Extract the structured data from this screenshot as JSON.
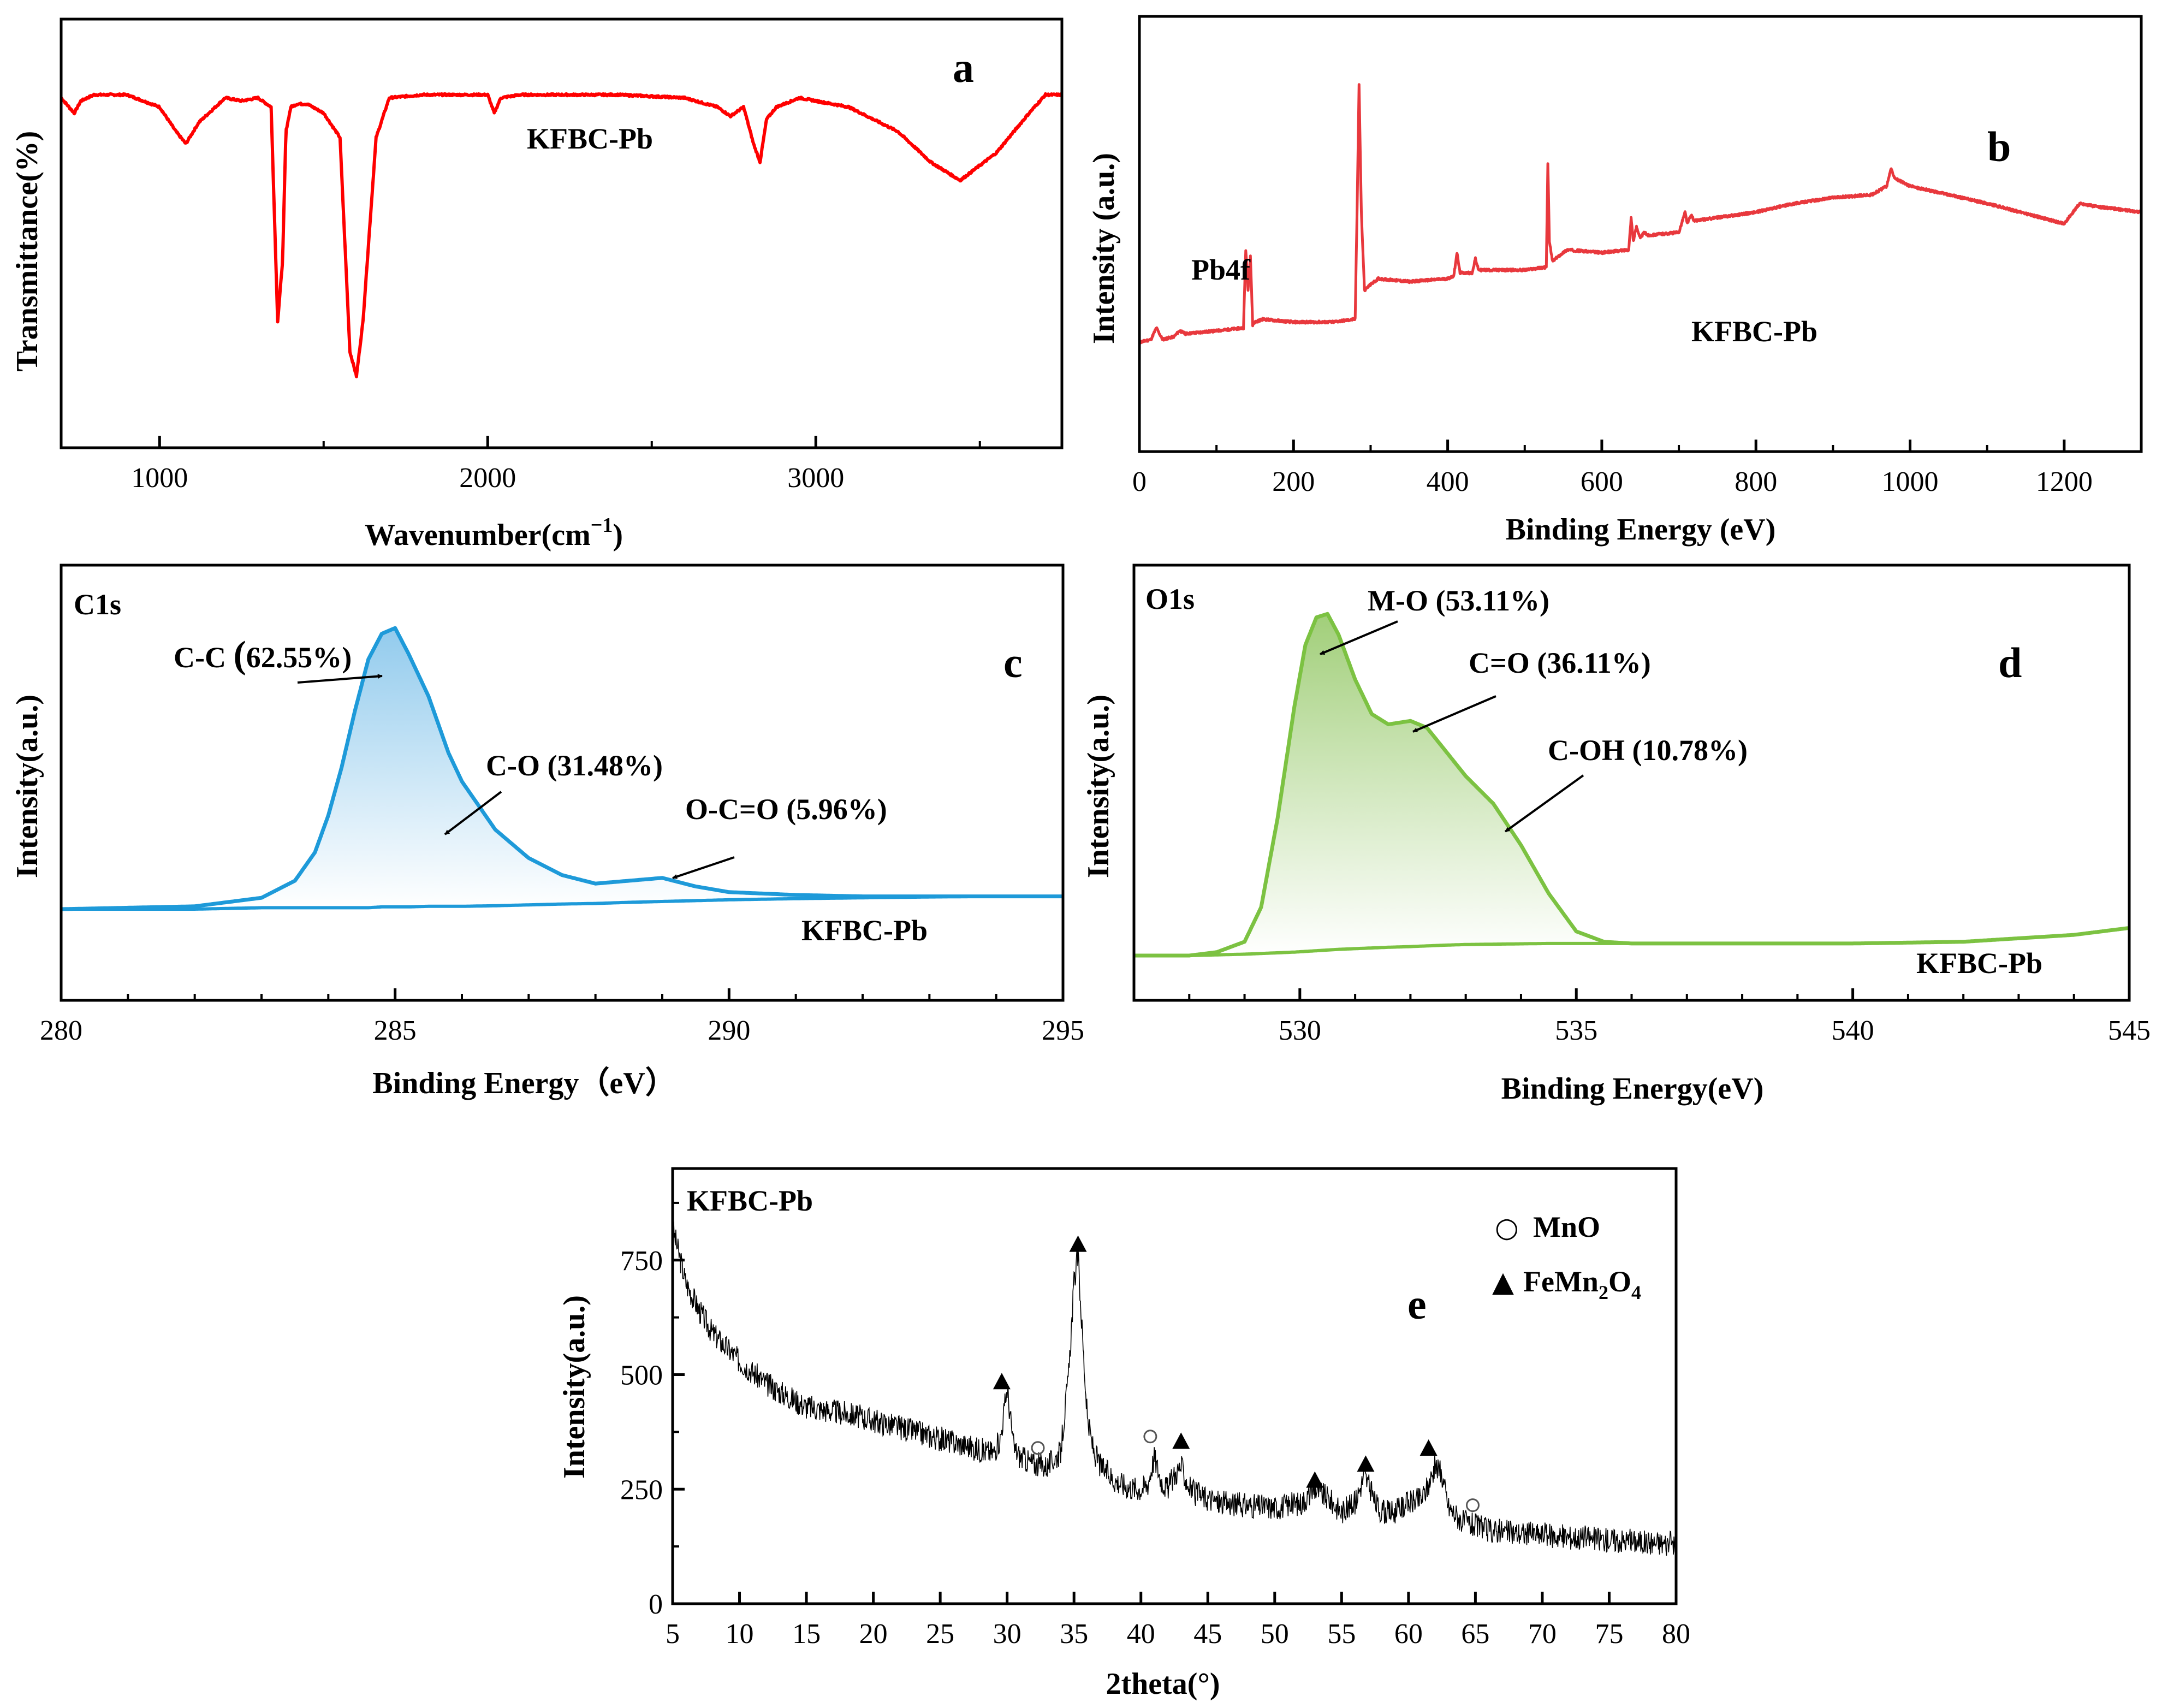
{
  "chart_data": [
    {
      "panel": "a",
      "type": "line",
      "xlabel": "Wavenumber(cm⁻¹)",
      "ylabel": "Transmittance(%)",
      "xlim": [
        700,
        3750
      ],
      "xticks": [
        1000,
        2000,
        3000
      ],
      "xtick_labels": [
        "1000",
        "2000",
        "3000"
      ],
      "series_name": "KFBC-Pb",
      "color": "#ff0000",
      "x": [
        700,
        740,
        760,
        800,
        900,
        1000,
        1050,
        1080,
        1120,
        1200,
        1250,
        1300,
        1340,
        1360,
        1375,
        1385,
        1400,
        1420,
        1450,
        1500,
        1550,
        1580,
        1600,
        1620,
        1640,
        1660,
        1700,
        1800,
        1900,
        2000,
        2020,
        2040,
        2100,
        2200,
        2400,
        2600,
        2700,
        2740,
        2780,
        2810,
        2830,
        2850,
        2880,
        2950,
        3100,
        3250,
        3350,
        3440,
        3550,
        3650,
        3700,
        3750
      ],
      "y": [
        0.93,
        0.88,
        0.92,
        0.94,
        0.94,
        0.9,
        0.82,
        0.78,
        0.85,
        0.93,
        0.92,
        0.93,
        0.9,
        0.2,
        0.4,
        0.82,
        0.9,
        0.91,
        0.91,
        0.88,
        0.8,
        0.1,
        0.02,
        0.2,
        0.5,
        0.8,
        0.93,
        0.94,
        0.94,
        0.94,
        0.88,
        0.93,
        0.94,
        0.94,
        0.94,
        0.93,
        0.9,
        0.87,
        0.9,
        0.78,
        0.72,
        0.86,
        0.9,
        0.93,
        0.9,
        0.82,
        0.72,
        0.66,
        0.75,
        0.88,
        0.94,
        0.94
      ],
      "annotations": [
        "KFBC-Pb"
      ]
    },
    {
      "panel": "b",
      "type": "line",
      "xlabel": "Binding Energy (eV)",
      "ylabel": "Intensity (a.u.)",
      "xlim": [
        0,
        1300
      ],
      "xticks": [
        0,
        200,
        400,
        600,
        800,
        1000,
        1200
      ],
      "xtick_labels": [
        "0",
        "200",
        "400",
        "600",
        "800",
        "1000",
        "1200"
      ],
      "series_name": "KFBC-Pb",
      "color": "#e8383d",
      "x": [
        0,
        15,
        22,
        30,
        45,
        52,
        60,
        100,
        135,
        138,
        141,
        144,
        147,
        150,
        160,
        200,
        250,
        280,
        283,
        285,
        288,
        292,
        300,
        310,
        350,
        400,
        408,
        412,
        416,
        425,
        432,
        436,
        440,
        470,
        500,
        528,
        530,
        532,
        536,
        545,
        555,
        600,
        635,
        638,
        641,
        645,
        650,
        655,
        660,
        700,
        708,
        711,
        716,
        720,
        800,
        850,
        900,
        950,
        970,
        975,
        980,
        985,
        1000,
        1100,
        1200,
        1220,
        1240,
        1300
      ],
      "y": [
        0.1,
        0.11,
        0.15,
        0.11,
        0.12,
        0.14,
        0.13,
        0.14,
        0.15,
        0.42,
        0.28,
        0.4,
        0.16,
        0.17,
        0.18,
        0.17,
        0.17,
        0.18,
        0.65,
        0.99,
        0.55,
        0.28,
        0.3,
        0.32,
        0.31,
        0.32,
        0.33,
        0.41,
        0.34,
        0.34,
        0.34,
        0.39,
        0.35,
        0.35,
        0.35,
        0.36,
        0.72,
        0.45,
        0.38,
        0.4,
        0.42,
        0.41,
        0.42,
        0.53,
        0.45,
        0.5,
        0.46,
        0.48,
        0.47,
        0.48,
        0.55,
        0.51,
        0.54,
        0.52,
        0.55,
        0.58,
        0.6,
        0.61,
        0.64,
        0.7,
        0.67,
        0.66,
        0.64,
        0.58,
        0.51,
        0.58,
        0.57,
        0.55
      ],
      "annotations": [
        "Pb4f",
        "KFBC-Pb"
      ]
    },
    {
      "panel": "c",
      "type": "area",
      "title": "C1s",
      "xlabel": "Binding Energy（eV）",
      "ylabel": "Intensity(a.u.)",
      "xlim": [
        280,
        295
      ],
      "xticks": [
        280,
        285,
        290,
        295
      ],
      "xtick_labels": [
        "280",
        "285",
        "290",
        "295"
      ],
      "series_name": "KFBC-Pb",
      "color": "#1e9ad9",
      "x": [
        280,
        282,
        283,
        283.5,
        283.8,
        284,
        284.2,
        284.4,
        284.6,
        284.8,
        285,
        285.2,
        285.5,
        285.8,
        286,
        286.5,
        287,
        287.5,
        288,
        288.5,
        289,
        289.5,
        290,
        291,
        292,
        293,
        294,
        295
      ],
      "y": [
        0.0,
        0.01,
        0.04,
        0.1,
        0.2,
        0.33,
        0.5,
        0.7,
        0.88,
        0.97,
        0.99,
        0.9,
        0.75,
        0.55,
        0.45,
        0.28,
        0.18,
        0.12,
        0.09,
        0.1,
        0.11,
        0.08,
        0.06,
        0.05,
        0.045,
        0.045,
        0.045,
        0.045
      ],
      "baseline": [
        0.0,
        0.0,
        0.005,
        0.005,
        0.005,
        0.005,
        0.005,
        0.005,
        0.005,
        0.008,
        0.008,
        0.008,
        0.01,
        0.01,
        0.01,
        0.012,
        0.015,
        0.018,
        0.02,
        0.024,
        0.027,
        0.03,
        0.033,
        0.037,
        0.04,
        0.043,
        0.045,
        0.045
      ],
      "components": [
        "C-C (62.55%)",
        "C-O (31.48%)",
        "O-C=O (5.96%)"
      ],
      "sample": "KFBC-Pb"
    },
    {
      "panel": "d",
      "type": "area",
      "title": "O1s",
      "xlabel": "Binding Energy(eV)",
      "ylabel": "Intensity(a.u.)",
      "xlim": [
        527,
        545
      ],
      "xticks": [
        530,
        535,
        540,
        545
      ],
      "xtick_labels": [
        "530",
        "535",
        "540",
        "545"
      ],
      "series_name": "KFBC-Pb",
      "color": "#7cc242",
      "x": [
        527,
        528,
        528.5,
        529,
        529.3,
        529.6,
        529.9,
        530.1,
        530.3,
        530.5,
        530.7,
        531,
        531.3,
        531.6,
        532,
        532.3,
        532.6,
        533,
        533.5,
        534,
        534.5,
        535,
        535.5,
        536,
        537,
        538,
        540,
        542,
        543,
        544,
        545
      ],
      "y": [
        0.0,
        0.0,
        0.01,
        0.04,
        0.14,
        0.4,
        0.72,
        0.9,
        0.98,
        0.99,
        0.93,
        0.8,
        0.7,
        0.67,
        0.68,
        0.66,
        0.6,
        0.52,
        0.44,
        0.32,
        0.18,
        0.07,
        0.04,
        0.035,
        0.035,
        0.035,
        0.035,
        0.04,
        0.05,
        0.06,
        0.08
      ],
      "baseline": [
        0.0,
        0.0,
        0.002,
        0.004,
        0.006,
        0.008,
        0.01,
        0.012,
        0.014,
        0.016,
        0.018,
        0.02,
        0.022,
        0.024,
        0.026,
        0.028,
        0.03,
        0.032,
        0.033,
        0.034,
        0.035,
        0.035,
        0.035,
        0.035,
        0.035,
        0.035,
        0.035,
        0.04,
        0.05,
        0.06,
        0.08
      ],
      "components": [
        "M-O (53.11%)",
        "C=O (36.11%)",
        "C-OH (10.78%)"
      ],
      "sample": "KFBC-Pb"
    },
    {
      "panel": "e",
      "type": "line",
      "title": "KFBC-Pb",
      "xlabel": "2theta(°)",
      "ylabel": "Intensity(a.u.)",
      "xlim": [
        5,
        80
      ],
      "ylim": [
        0,
        950
      ],
      "xticks": [
        5,
        10,
        15,
        20,
        25,
        30,
        35,
        40,
        45,
        50,
        55,
        60,
        65,
        70,
        75,
        80
      ],
      "xtick_labels": [
        "5",
        "10",
        "15",
        "20",
        "25",
        "30",
        "35",
        "40",
        "45",
        "50",
        "55",
        "60",
        "65",
        "70",
        "75",
        "80"
      ],
      "yticks": [
        0,
        250,
        500,
        750
      ],
      "ytick_labels": [
        "0",
        "250",
        "500",
        "750"
      ],
      "color": "#000000",
      "x": [
        5,
        6,
        7,
        8,
        10,
        12,
        15,
        18,
        20,
        22,
        25,
        27,
        28,
        29,
        29.5,
        30,
        30.5,
        31,
        32,
        33,
        34,
        34.6,
        35,
        35.3,
        35.6,
        36,
        36.5,
        37,
        38,
        39,
        40,
        40.5,
        41,
        41.5,
        42,
        42.5,
        43,
        43.5,
        44,
        46,
        50,
        52,
        53,
        54,
        55,
        56,
        56.7,
        57,
        57.5,
        58,
        59,
        60,
        61,
        61.5,
        62,
        62.5,
        63,
        64,
        66,
        70,
        75,
        80
      ],
      "y": [
        820,
        700,
        640,
        590,
        530,
        480,
        430,
        415,
        400,
        385,
        360,
        345,
        335,
        330,
        360,
        470,
        340,
        320,
        305,
        300,
        330,
        500,
        700,
        760,
        600,
        400,
        330,
        300,
        270,
        255,
        250,
        260,
        320,
        270,
        250,
        280,
        300,
        260,
        240,
        220,
        210,
        220,
        250,
        230,
        200,
        220,
        280,
        260,
        220,
        200,
        200,
        220,
        230,
        260,
        300,
        280,
        210,
        180,
        160,
        150,
        140,
        130
      ],
      "legend": [
        {
          "marker": "○",
          "name": "MnO"
        },
        {
          "marker": "▲",
          "name": "FeMn₂O₄"
        }
      ],
      "peak_markers": [
        {
          "type": "triangle",
          "x": 29.6,
          "y": 480
        },
        {
          "type": "triangle",
          "x": 35.3,
          "y": 780
        },
        {
          "type": "triangle",
          "x": 43.0,
          "y": 350
        },
        {
          "type": "triangle",
          "x": 53.0,
          "y": 265
        },
        {
          "type": "triangle",
          "x": 56.8,
          "y": 300
        },
        {
          "type": "triangle",
          "x": 61.5,
          "y": 335
        },
        {
          "type": "circle",
          "x": 32.3,
          "y": 340
        },
        {
          "type": "circle",
          "x": 40.7,
          "y": 365
        },
        {
          "type": "circle",
          "x": 64.8,
          "y": 215
        }
      ]
    }
  ],
  "labels": {
    "a": {
      "panel": "a",
      "sample": "KFBC-Pb",
      "xlabel_main": "Wavenumber(cm",
      "xlabel_sup": "−1",
      "xlabel_end": ")",
      "ylabel": "Transmittance(%)"
    },
    "b": {
      "panel": "b",
      "sample": "KFBC-Pb",
      "peak": "Pb4f",
      "xlabel": "Binding Energy (eV)",
      "ylabel": "Intensity (a.u.)"
    },
    "c": {
      "panel": "c",
      "title": "C1s",
      "sample": "KFBC-Pb",
      "cc_pre": "C-C ",
      "cc_paren": "(",
      "cc_post": "62.55%)",
      "co": "C-O (31.48%)",
      "oco": "O-C=O (5.96%)",
      "xlabel": "Binding Energy（eV）",
      "ylabel": "Intensity(a.u.)"
    },
    "d": {
      "panel": "d",
      "title": "O1s",
      "sample": "KFBC-Pb",
      "mo": "M-O (53.11%)",
      "co": "C=O (36.11%)",
      "coh": "C-OH (10.78%)",
      "xlabel": "Binding Energy(eV)",
      "ylabel": "Intensity(a.u.)"
    },
    "e": {
      "panel": "e",
      "title": "KFBC-Pb",
      "xlabel": "2theta(°)",
      "ylabel": "Intensity(a.u.)",
      "leg_circle": "○",
      "leg_mno": "MnO",
      "leg_tri": "▲",
      "leg_fe1": "FeMn",
      "leg_fe2": "2",
      "leg_fe3": "O",
      "leg_fe4": "4"
    }
  },
  "colors": {
    "a": "#ff0000",
    "b": "#e8383d",
    "c": "#1e9ad9",
    "d": "#7cc242",
    "e": "#000000"
  }
}
